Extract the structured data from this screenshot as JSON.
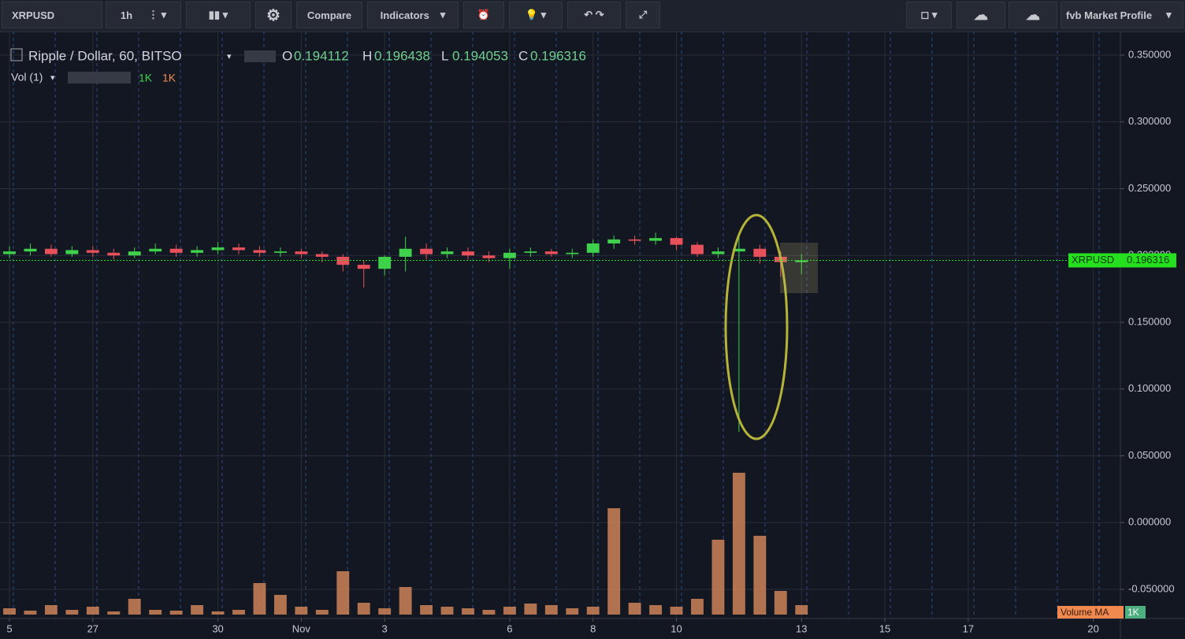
{
  "toolbar": {
    "symbol": "XRPUSD",
    "interval": "1h",
    "compare": "Compare",
    "indicators": "Indicators",
    "profile": "fvb Market Profile"
  },
  "legend": {
    "title": "Ripple / Dollar, 60, BITSO",
    "o_label": "O",
    "o": "0.194112",
    "h_label": "H",
    "h": "0.196438",
    "l_label": "L",
    "l": "0.194053",
    "c_label": "C",
    "c": "0.196316",
    "vol": "Vol (1)",
    "vol_a": "1K",
    "vol_b": "1K"
  },
  "chart_data": {
    "type": "candlestick",
    "x": [
      0,
      0.5,
      1,
      1.5,
      2,
      2.5,
      3,
      3.5,
      4,
      4.5,
      5,
      5.5,
      6,
      6.5,
      7,
      7.5,
      8,
      8.5,
      9,
      9.5,
      10,
      10.5,
      11,
      11.5,
      12,
      12.5,
      13,
      13.5,
      14,
      14.5,
      15,
      15.5,
      16,
      16.5,
      17,
      17.5,
      18,
      18.5,
      19
    ],
    "open": [
      0.201,
      0.203,
      0.205,
      0.201,
      0.204,
      0.202,
      0.2,
      0.203,
      0.205,
      0.202,
      0.204,
      0.206,
      0.204,
      0.202,
      0.203,
      0.201,
      0.199,
      0.193,
      0.19,
      0.199,
      0.205,
      0.201,
      0.203,
      0.2,
      0.198,
      0.202,
      0.203,
      0.201,
      0.202,
      0.209,
      0.212,
      0.211,
      0.213,
      0.208,
      0.201,
      0.203,
      0.205,
      0.199,
      0.195
    ],
    "high": [
      0.207,
      0.209,
      0.208,
      0.207,
      0.207,
      0.205,
      0.206,
      0.209,
      0.208,
      0.207,
      0.21,
      0.209,
      0.207,
      0.206,
      0.205,
      0.203,
      0.201,
      0.196,
      0.2,
      0.214,
      0.209,
      0.206,
      0.206,
      0.203,
      0.205,
      0.206,
      0.205,
      0.205,
      0.212,
      0.215,
      0.215,
      0.217,
      0.214,
      0.21,
      0.206,
      0.214,
      0.208,
      0.203,
      0.201
    ],
    "low": [
      0.198,
      0.2,
      0.199,
      0.199,
      0.199,
      0.197,
      0.198,
      0.201,
      0.199,
      0.199,
      0.201,
      0.201,
      0.199,
      0.199,
      0.198,
      0.195,
      0.188,
      0.176,
      0.185,
      0.188,
      0.197,
      0.198,
      0.197,
      0.195,
      0.19,
      0.199,
      0.199,
      0.198,
      0.199,
      0.205,
      0.208,
      0.208,
      0.204,
      0.199,
      0.198,
      0.068,
      0.194,
      0.184,
      0.186
    ],
    "close": [
      0.203,
      0.205,
      0.201,
      0.204,
      0.202,
      0.2,
      0.203,
      0.205,
      0.202,
      0.204,
      0.206,
      0.204,
      0.202,
      0.203,
      0.201,
      0.199,
      0.193,
      0.19,
      0.199,
      0.205,
      0.201,
      0.203,
      0.2,
      0.198,
      0.202,
      0.203,
      0.201,
      0.202,
      0.209,
      0.212,
      0.211,
      0.213,
      0.208,
      0.201,
      0.203,
      0.205,
      0.199,
      0.195,
      0.196316
    ],
    "volume": [
      8,
      5,
      12,
      6,
      10,
      4,
      20,
      6,
      5,
      12,
      4,
      6,
      40,
      25,
      10,
      6,
      55,
      15,
      8,
      35,
      12,
      10,
      8,
      6,
      10,
      14,
      12,
      8,
      10,
      135,
      15,
      12,
      10,
      20,
      95,
      180,
      100,
      30,
      12
    ],
    "volume_lim": [
      0,
      200
    ],
    "up_color": "#3fd14c",
    "down_color": "#e8505b",
    "volume_color": "#d98a5c",
    "last_price": {
      "value": 0.196316,
      "symbol": "XRPUSD",
      "label": "0.196316",
      "color": "#26e01f"
    },
    "volume_ma": "Volume MA",
    "volume_ma_value": "1K",
    "xlim": [
      -0.227,
      26.65
    ],
    "xticks": [
      {
        "value": 0,
        "label": "5"
      },
      {
        "value": 2,
        "label": "27"
      },
      {
        "value": 5,
        "label": "30"
      },
      {
        "value": 7,
        "label": "Nov"
      },
      {
        "value": 9,
        "label": "3"
      },
      {
        "value": 12,
        "label": "6"
      },
      {
        "value": 14,
        "label": "8"
      },
      {
        "value": 16,
        "label": "10"
      },
      {
        "value": 19,
        "label": "13"
      },
      {
        "value": 21,
        "label": "15"
      },
      {
        "value": 23,
        "label": "17"
      },
      {
        "value": 26,
        "label": "20"
      }
    ],
    "ylim": [
      -0.0718,
      0.3647
    ],
    "yticks": [
      {
        "value": -0.05,
        "label": "-0.050000"
      },
      {
        "value": 0,
        "label": "0.000000"
      },
      {
        "value": 0.05,
        "label": "0.050000"
      },
      {
        "value": 0.1,
        "label": "0.100000"
      },
      {
        "value": 0.15,
        "label": "0.150000"
      },
      {
        "value": 0.2,
        "label": "0.200000"
      },
      {
        "value": 0.25,
        "label": "0.250000"
      },
      {
        "value": 0.3,
        "label": "0.300000"
      },
      {
        "value": 0.35,
        "label": "0.350000"
      }
    ],
    "grid": true
  }
}
